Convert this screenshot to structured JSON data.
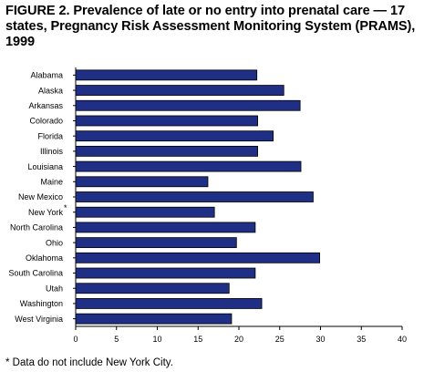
{
  "figure": {
    "title": "FIGURE 2. Prevalence of late or no entry into prenatal care — 17 states, Pregnancy Risk Assessment Monitoring System (PRAMS), 1999",
    "footnote": "* Data do not include New York City."
  },
  "chart_data": {
    "type": "bar",
    "orientation": "horizontal",
    "categories": [
      "Alabama",
      "Alaska",
      "Arkansas",
      "Colorado",
      "Florida",
      "Illinois",
      "Louisiana",
      "Maine",
      "New Mexico",
      "New York",
      "North Carolina",
      "Ohio",
      "Oklahoma",
      "South Carolina",
      "Utah",
      "Washington",
      "West Virginia"
    ],
    "category_markers": [
      "",
      "",
      "",
      "",
      "",
      "",
      "",
      "",
      "",
      "*",
      "",
      "",
      "",
      "",
      "",
      "",
      ""
    ],
    "values": [
      22.2,
      25.5,
      27.5,
      22.3,
      24.2,
      22.3,
      27.6,
      16.2,
      29.1,
      17.0,
      22.0,
      19.7,
      29.9,
      22.0,
      18.8,
      22.8,
      19.1
    ],
    "xlim": [
      0,
      40
    ],
    "xticks": [
      "0",
      "5",
      "10",
      "15",
      "20",
      "25",
      "30",
      "35",
      "40"
    ],
    "xlabel": "",
    "ylabel": "",
    "grid": false,
    "legend": "none",
    "colors": {
      "bar_fill": "#1f2f85",
      "bar_stroke": "#000000",
      "axis": "#000000"
    }
  }
}
